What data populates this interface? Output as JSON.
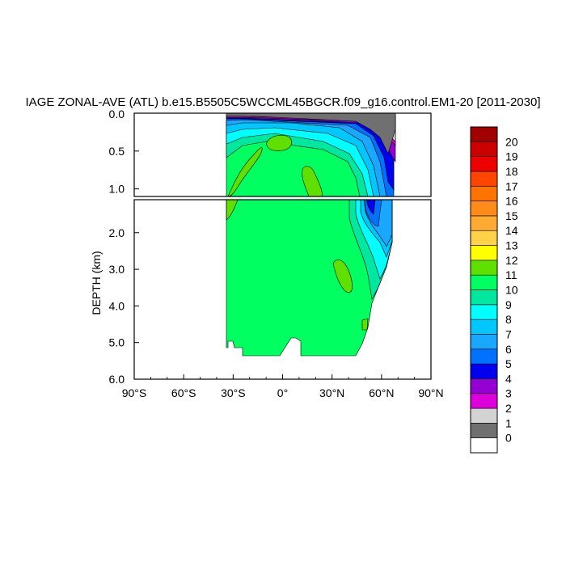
{
  "figure": {
    "title": "IAGE ZONAL-AVE (ATL) b.e15.B5505C5WCCML45BGCR.f09_g16.control.EM1-20 [2011-2030]"
  },
  "chart_data": {
    "type": "heatmap",
    "title": "IAGE ZONAL-AVE (ATL) b.e15.B5505C5WCCML45BGCR.f09_g16.control.EM1-20 [2011-2030]",
    "xlabel": "",
    "ylabel": "DEPTH (km)",
    "xlim": [
      -90,
      90
    ],
    "xticks": [
      -90,
      -60,
      -30,
      0,
      30,
      60,
      90
    ],
    "xticklabels": [
      "90°S",
      "60°S",
      "30°S",
      "0°",
      "30°N",
      "60°N",
      "90°N"
    ],
    "panels": [
      {
        "name": "upper",
        "ylim": [
          0,
          1.1
        ],
        "yticks": [
          0.0,
          0.5,
          1.0
        ],
        "yticklabels": [
          "0.0",
          "0.5",
          "1.0"
        ]
      },
      {
        "name": "lower",
        "ylim": [
          1.1,
          6.0
        ],
        "yticks": [
          2.0,
          3.0,
          4.0,
          5.0,
          6.0
        ],
        "yticklabels": [
          "2.0",
          "3.0",
          "4.0",
          "5.0",
          "6.0"
        ]
      }
    ],
    "levels": [
      0,
      1,
      2,
      3,
      4,
      5,
      6,
      7,
      8,
      9,
      10,
      11,
      12,
      13,
      14,
      15,
      16,
      17,
      18,
      19,
      20
    ],
    "colorbar_colors": [
      "#ffffff",
      "#707070",
      "#d3d3d3",
      "#dd00dd",
      "#9400d3",
      "#0000ee",
      "#0072ff",
      "#1aa7ff",
      "#00c8ff",
      "#00ffff",
      "#00e8a0",
      "#00ff60",
      "#60e000",
      "#ffff00",
      "#ffd24a",
      "#ffaa33",
      "#ff8c1a",
      "#ff7300",
      "#ff4500",
      "#ee0000",
      "#cc0000",
      "#a00000"
    ],
    "fields": {
      "domain_lat": [
        -34,
        67
      ],
      "surface_young_layer": "0-2 yr near surface, thickening northward",
      "deep_interior_value": 10,
      "north_atlantic_low_age_range": [
        4,
        8
      ]
    }
  }
}
